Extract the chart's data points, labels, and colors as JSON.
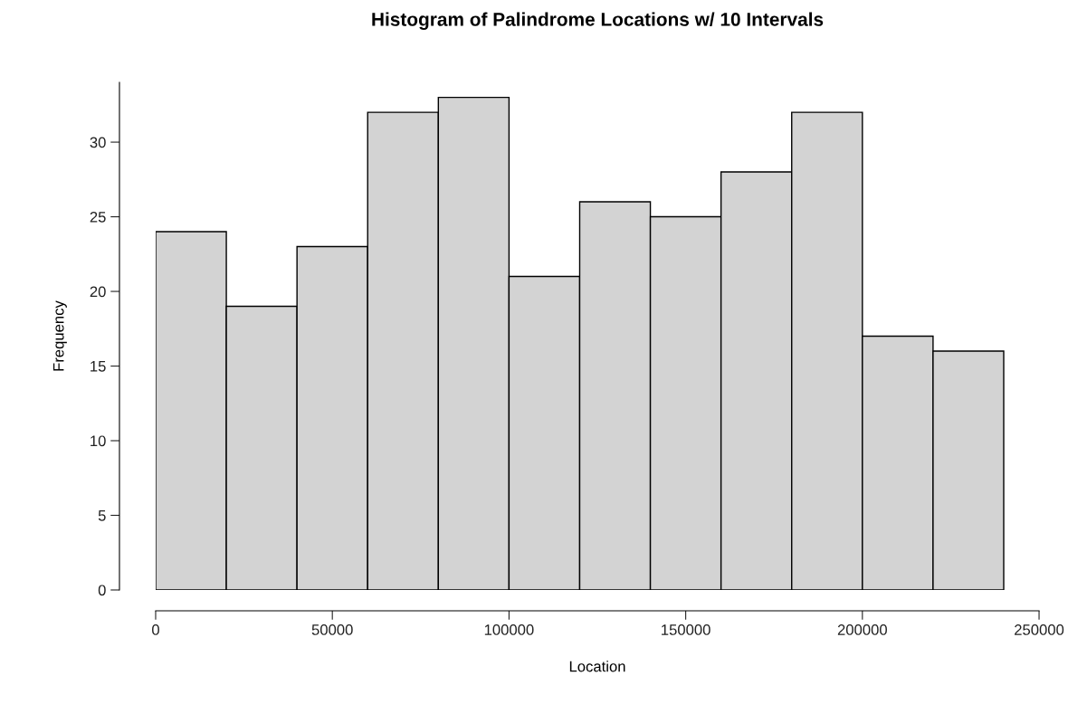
{
  "chart_data": {
    "type": "histogram",
    "title": "Histogram of Palindrome Locations w/ 10 Intervals",
    "xlabel": "Location",
    "ylabel": "Frequency",
    "bins": [
      0,
      20000,
      40000,
      60000,
      80000,
      100000,
      120000,
      140000,
      160000,
      180000,
      200000,
      220000,
      240000
    ],
    "values": [
      24,
      19,
      23,
      32,
      33,
      21,
      26,
      25,
      28,
      32,
      17,
      16
    ],
    "color": "#d3d3d3",
    "xlim": [
      0,
      250000
    ],
    "ylim": [
      0,
      34
    ],
    "xticks": [
      0,
      50000,
      100000,
      150000,
      200000,
      250000
    ],
    "yticks": [
      0,
      5,
      10,
      15,
      20,
      25,
      30
    ],
    "grid": false
  }
}
